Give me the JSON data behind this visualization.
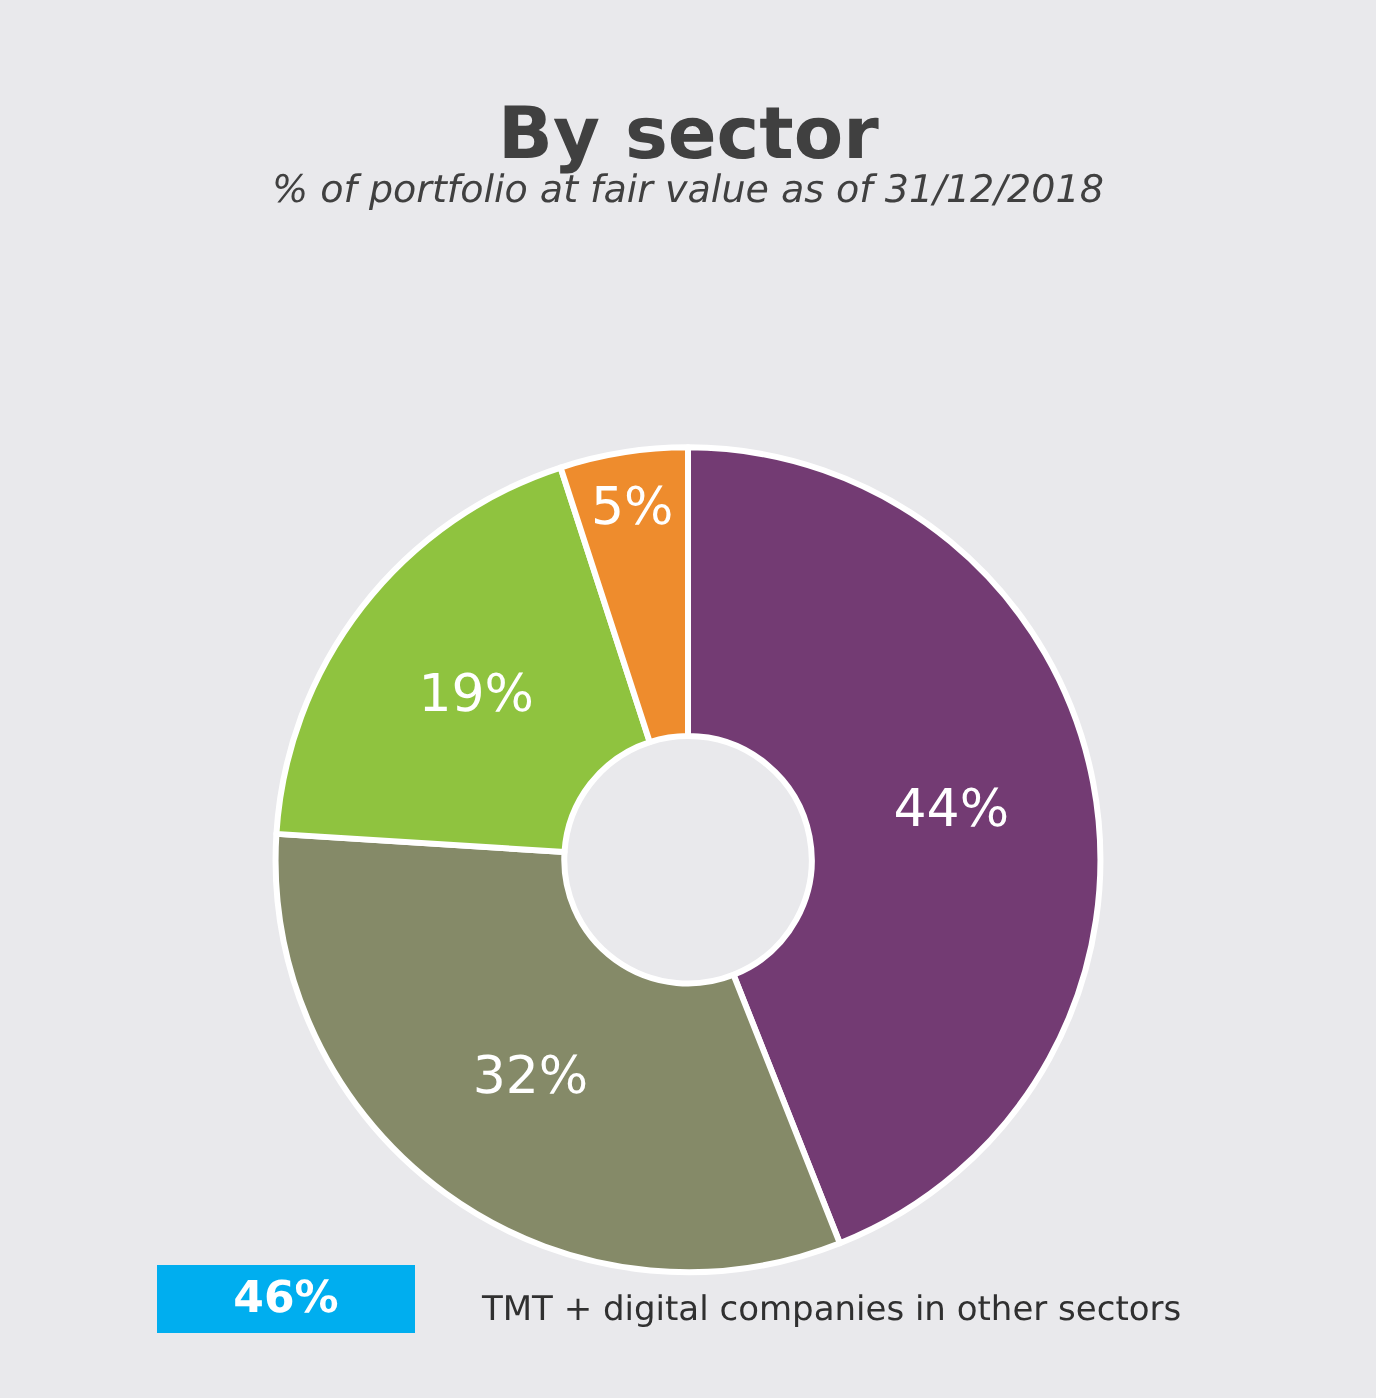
{
  "chart_data": {
    "type": "donut",
    "title": "By sector",
    "subtitle": "% of portfolio at fair value as of 31/12/2018",
    "categories": [
      null,
      null,
      null,
      null
    ],
    "values": [
      44,
      32,
      19,
      5
    ],
    "value_labels": [
      "44%",
      "32%",
      "19%",
      "5%"
    ],
    "colors": [
      "#733b73",
      "#858a68",
      "#8fc33f",
      "#ee8c2d"
    ],
    "legend": false,
    "annotations": [
      "46%",
      "TMT + digital companies in other sectors"
    ]
  }
}
